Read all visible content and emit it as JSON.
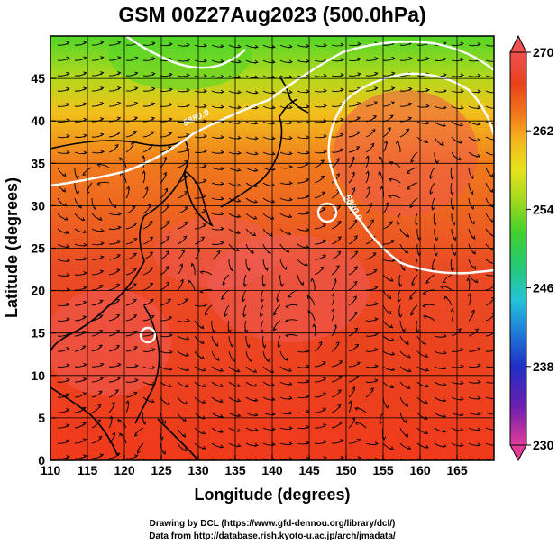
{
  "title": "GSM 00Z27Aug2023 (500.0hPa)",
  "x_axis": {
    "label": "Longitude (degrees)",
    "ticks": [
      "110",
      "115",
      "120",
      "125",
      "130",
      "135",
      "140",
      "145",
      "150",
      "155",
      "160",
      "165"
    ],
    "range": [
      110,
      170
    ]
  },
  "y_axis": {
    "label": "Latitude  (degrees)",
    "ticks": [
      "0",
      "5",
      "10",
      "15",
      "20",
      "25",
      "30",
      "35",
      "40",
      "45"
    ],
    "range": [
      0,
      50
    ]
  },
  "colorbar": {
    "ticks": [
      "270",
      "262",
      "254",
      "246",
      "238",
      "230"
    ],
    "range": [
      230,
      270
    ],
    "colors": [
      "#e23c99",
      "#6a1fb0",
      "#1f2fc4",
      "#1f7fd9",
      "#25c4d8",
      "#26c87a",
      "#3fd12d",
      "#9ed81e",
      "#e6e31c",
      "#f5b21d",
      "#f07a1c",
      "#e8421b",
      "#ee4f4f"
    ]
  },
  "contours": [
    {
      "label": "5880.0"
    },
    {
      "label": "5880.0"
    }
  ],
  "credits": {
    "line1": "Drawing by DCL (https://www.gfd-dennou.org/library/dcl/)",
    "line2": "Data from http://database.rish.kyoto-u.ac.jp/arch/jmadata/"
  }
}
